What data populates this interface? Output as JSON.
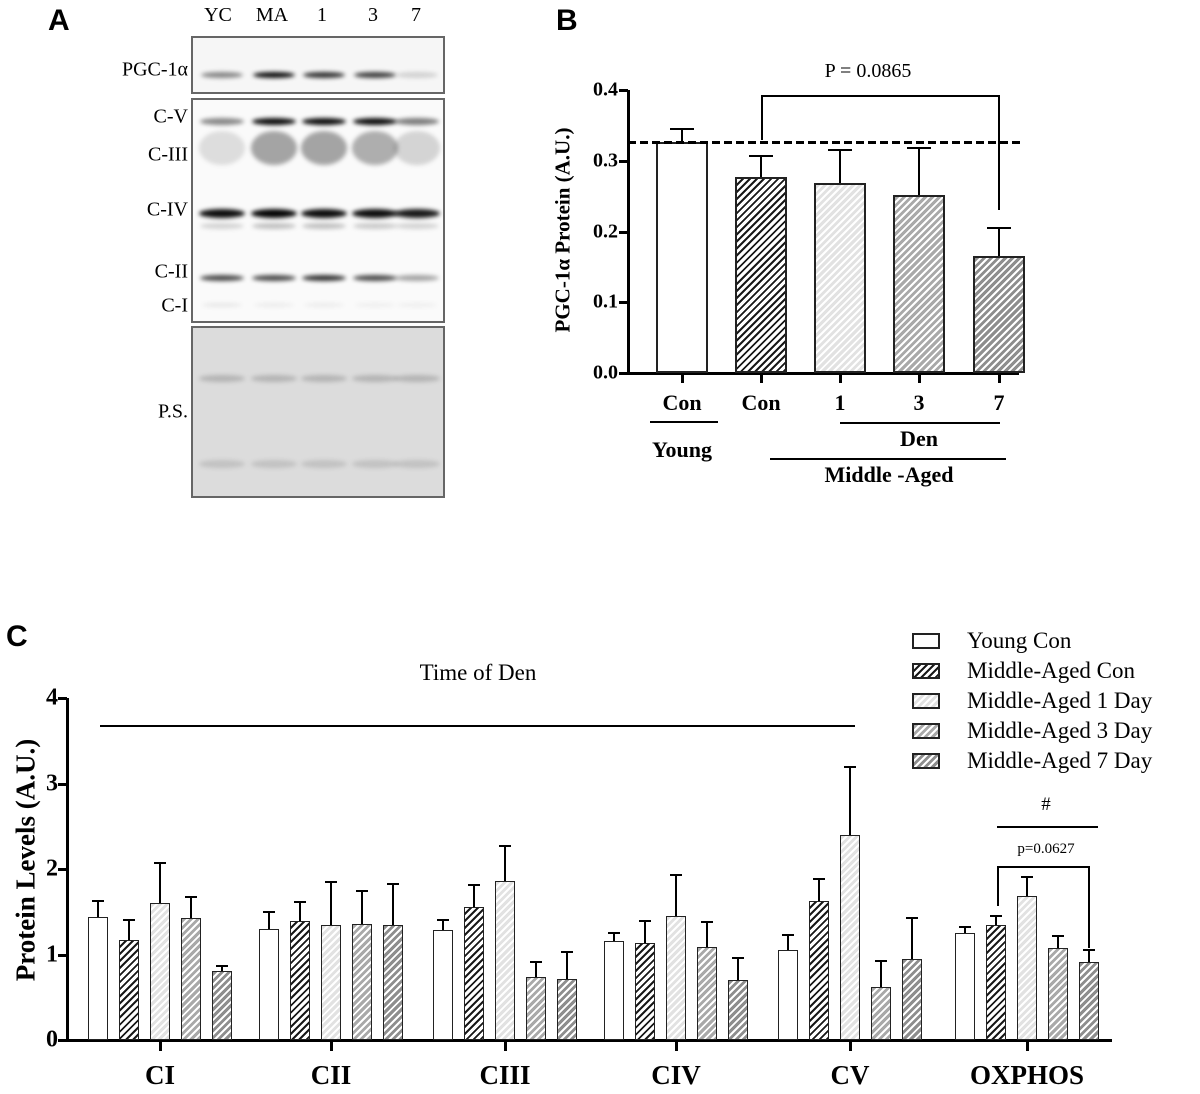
{
  "panel_labels": {
    "a": "A",
    "b": "B",
    "c": "C"
  },
  "blot": {
    "lanes": [
      "YC",
      "MA",
      "1",
      "3",
      "7"
    ],
    "rows": [
      "PGC-1α",
      "C-V",
      "C-III",
      "C-IV",
      "C-II",
      "C-I",
      "P.S."
    ]
  },
  "chart_data": [
    {
      "type": "bar",
      "title": "",
      "ylabel": "PGC-1α Protein (A.U.)",
      "ylim": [
        0,
        0.4
      ],
      "yticks": [
        "0.0",
        "0.1",
        "0.2",
        "0.3",
        "0.4"
      ],
      "categories": [
        "Con",
        "Con",
        "1",
        "3",
        "7"
      ],
      "values": [
        0.327,
        0.277,
        0.269,
        0.251,
        0.165
      ],
      "error_upper": [
        0.346,
        0.308,
        0.317,
        0.32,
        0.207
      ],
      "reference_line": 0.327,
      "group_labels": {
        "young": "Young",
        "den": "Den",
        "middle_aged": "Middle -Aged"
      },
      "annotation": "P = 0.0865",
      "colors": [
        "#ffffff",
        "#ffffff",
        "#e2e2e2",
        "#a9a9a9",
        "#8e8e8e"
      ]
    },
    {
      "type": "bar",
      "title": "",
      "ylabel": "Protein Levels (A.U.)",
      "ylim": [
        0,
        4
      ],
      "yticks": [
        "0",
        "1",
        "2",
        "3",
        "4"
      ],
      "categories": [
        "CI",
        "CII",
        "CIII",
        "CIV",
        "CV",
        "OXPHOS"
      ],
      "legend": "top-right",
      "series": [
        {
          "name": "Young Con",
          "color": "#ffffff",
          "values": [
            1.44,
            1.3,
            1.29,
            1.16,
            1.05,
            1.25
          ],
          "error_upper": [
            1.64,
            1.51,
            1.42,
            1.26,
            1.24,
            1.33
          ]
        },
        {
          "name": "Middle-Aged Con",
          "color": "#ffffff",
          "values": [
            1.17,
            1.39,
            1.55,
            1.14,
            1.62,
            1.35
          ],
          "error_upper": [
            1.41,
            1.62,
            1.83,
            1.4,
            1.9,
            1.46
          ]
        },
        {
          "name": "Middle-Aged 1 Day",
          "color": "#e2e2e2",
          "values": [
            1.6,
            1.34,
            1.86,
            1.45,
            2.4,
            1.68
          ],
          "error_upper": [
            2.08,
            1.86,
            2.28,
            1.94,
            3.21,
            1.92
          ]
        },
        {
          "name": "Middle-Aged 3 Day",
          "color": "#a9a9a9",
          "values": [
            1.43,
            1.36,
            0.74,
            1.09,
            0.62,
            1.08
          ],
          "error_upper": [
            1.69,
            1.76,
            0.92,
            1.39,
            0.94,
            1.23
          ]
        },
        {
          "name": "Middle-Aged 7 Day",
          "color": "#8e8e8e",
          "values": [
            0.81,
            1.34,
            0.71,
            0.7,
            0.95,
            0.91
          ],
          "error_upper": [
            0.88,
            1.84,
            1.04,
            0.97,
            1.44,
            1.06
          ]
        }
      ],
      "annotations": {
        "time_of_den": "Time of Den",
        "hash": "#",
        "p_value": "p=0.0627"
      }
    }
  ]
}
